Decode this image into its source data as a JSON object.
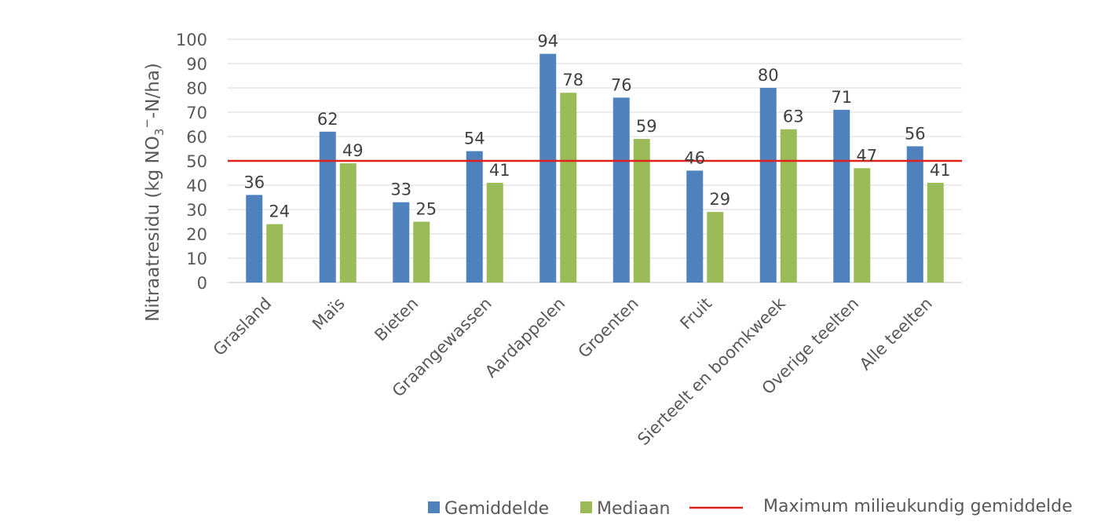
{
  "chart_data": {
    "type": "bar",
    "ylabel": "Nitraatresidu (kg NO₃⁻-N/ha)",
    "ylabel_main": "Nitraatresidu (kg NO",
    "ylabel_sub": "3",
    "ylabel_sup": "−",
    "ylabel_tail": "-N/ha)",
    "ylim": [
      0,
      100
    ],
    "yticks": [
      0,
      10,
      20,
      30,
      40,
      50,
      60,
      70,
      80,
      90,
      100
    ],
    "grid": true,
    "legend_position": "bottom",
    "categories": [
      "Grasland",
      "Maïs",
      "Bieten",
      "Graangewassen",
      "Aardappelen",
      "Groenten",
      "Fruit",
      "Sierteelt en boomkweek",
      "Overige teelten",
      "Alle teelten"
    ],
    "series": [
      {
        "name": "Gemiddelde",
        "color": "#4F81BD",
        "values": [
          36,
          62,
          33,
          54,
          94,
          76,
          46,
          80,
          71,
          56
        ]
      },
      {
        "name": "Mediaan",
        "color": "#9BBB59",
        "values": [
          24,
          49,
          25,
          41,
          78,
          59,
          29,
          63,
          47,
          41
        ]
      }
    ],
    "reference_line": {
      "name": "Maximum milieukundig gemiddelde",
      "value": 50,
      "color": "#E0201B"
    }
  }
}
